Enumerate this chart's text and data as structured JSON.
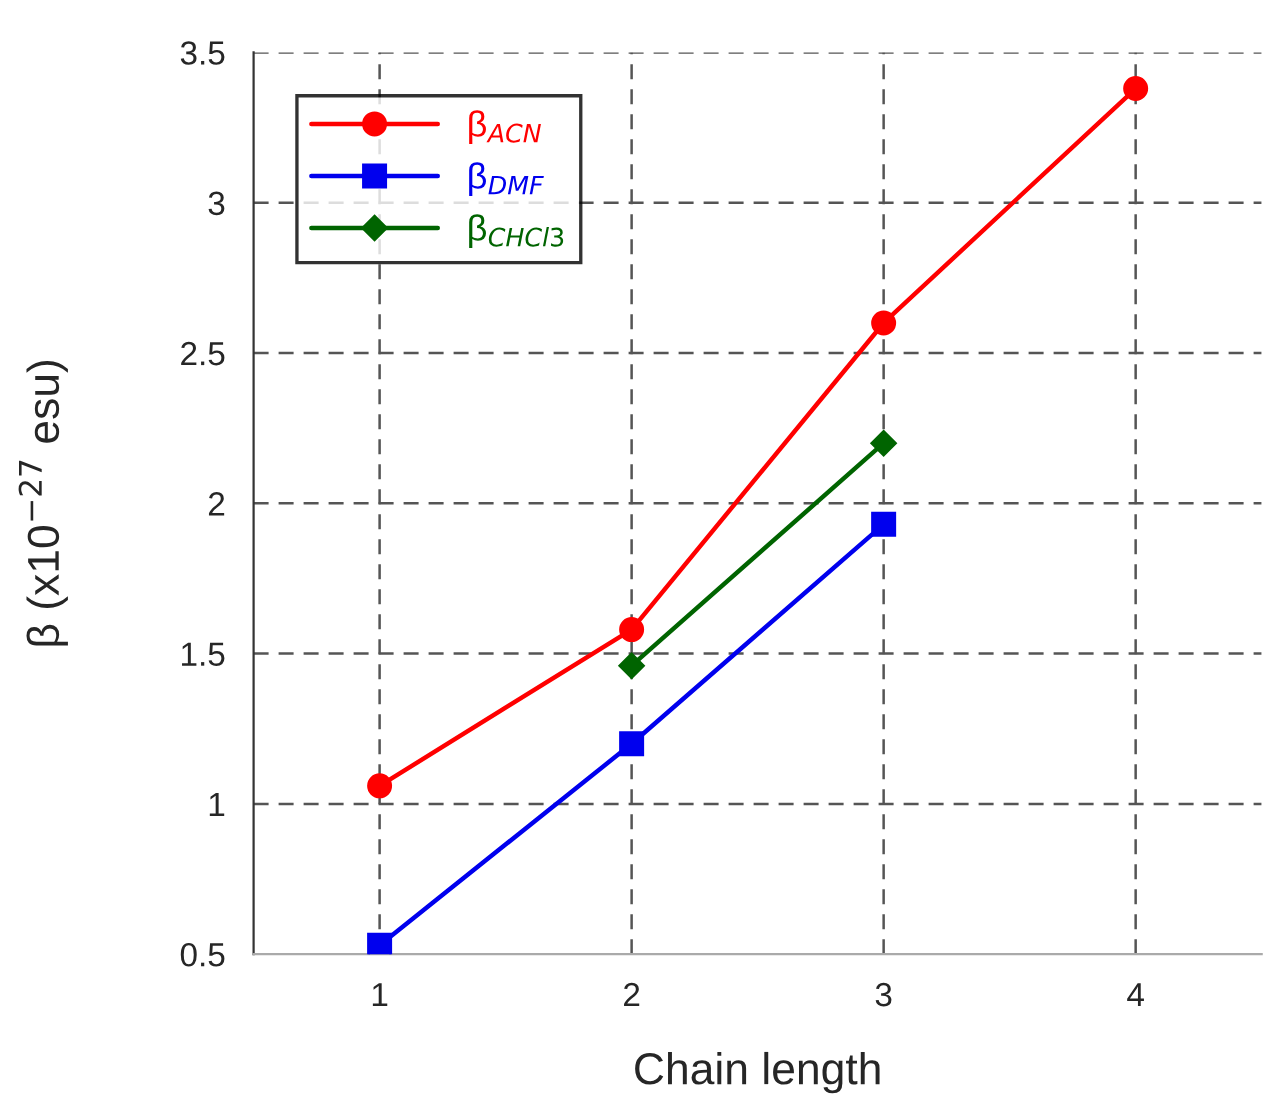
{
  "chart_data": {
    "type": "line",
    "xlabel": "Chain length",
    "ylabel": "β (x10$^{−27}$ esu)",
    "x": [
      1,
      2,
      3,
      4
    ],
    "series": [
      {
        "name": "β$_{ACN}$",
        "color": "#ff0000",
        "marker": "circle",
        "values": [
          1.06,
          1.58,
          2.6,
          3.38
        ]
      },
      {
        "name": "β$_{DMF}$",
        "color": "#0000ee",
        "marker": "square",
        "values": [
          0.53,
          1.2,
          1.93,
          null
        ]
      },
      {
        "name": "β$_{CHCl3}$",
        "color": "#006400",
        "marker": "diamond",
        "values": [
          null,
          1.46,
          2.2,
          null
        ]
      }
    ],
    "xlim": [
      0.5,
      4.5
    ],
    "xticks": [
      1,
      2,
      3,
      4
    ],
    "ylim": [
      0.5,
      3.5
    ],
    "yticks": [
      0.5,
      1,
      1.5,
      2,
      2.5,
      3,
      3.5
    ],
    "grid": true,
    "legend": "top left",
    "line_style": "solid"
  }
}
